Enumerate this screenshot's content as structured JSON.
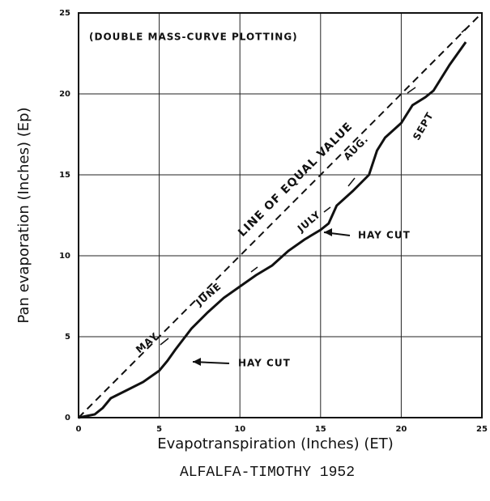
{
  "chart_data": {
    "type": "line",
    "annotation_title": "(DOUBLE MASS-CURVE PLOTTING)",
    "x_label": "Evapotranspiration (Inches)   (ET)",
    "y_label": "Pan evaporation (Inches) (Ep)",
    "caption": "ALFALFA-TIMOTHY 1952",
    "x": [
      0,
      1,
      1.5,
      2,
      3,
      4,
      5,
      5.5,
      6,
      7,
      8,
      9,
      10,
      11,
      12,
      13,
      14,
      15,
      15.5,
      16,
      17,
      18,
      18.5,
      19,
      20,
      20.7,
      21.5,
      22,
      23,
      24
    ],
    "values": [
      0,
      0.2,
      0.6,
      1.2,
      1.7,
      2.2,
      2.9,
      3.5,
      4.2,
      5.5,
      6.5,
      7.4,
      8.1,
      8.8,
      9.4,
      10.3,
      11,
      11.6,
      12,
      13.1,
      14,
      15,
      16.5,
      17.3,
      18.2,
      19.3,
      19.8,
      20.2,
      21.8,
      23.2
    ],
    "color": "#111111",
    "equal_line": {
      "label": "LINE OF EQUAL VALUE",
      "x": [
        0,
        25
      ],
      "y": [
        0,
        25
      ]
    },
    "annotations": [
      "MAY",
      "JUNE",
      "JULY",
      "AUG.",
      "SEPT",
      "HAY CUT",
      "HAY CUT"
    ],
    "xlim": [
      0,
      25
    ],
    "ylim": [
      0,
      25
    ],
    "xticks": [
      0,
      5,
      10,
      15,
      20,
      25
    ],
    "yticks": [
      0,
      5,
      10,
      15,
      20,
      25
    ],
    "grid": true
  }
}
